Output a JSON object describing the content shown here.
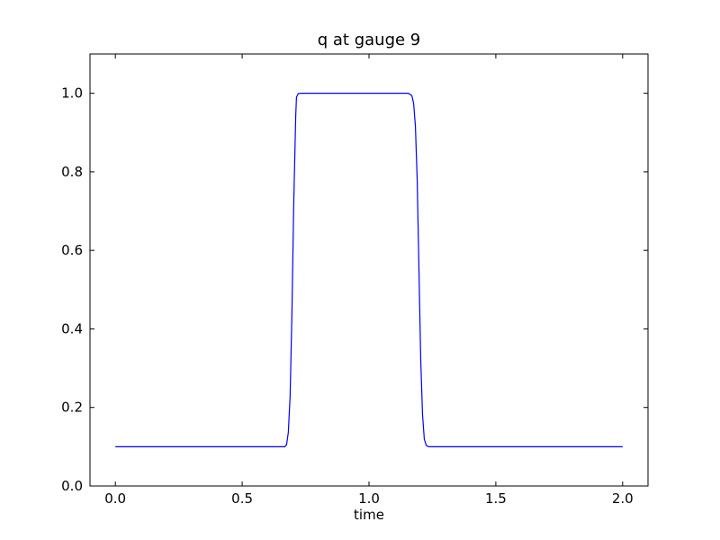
{
  "chart_data": {
    "type": "line",
    "title": "q at gauge 9",
    "xlabel": "time",
    "ylabel": "",
    "xlim": [
      -0.1,
      2.1
    ],
    "ylim": [
      0.0,
      1.1
    ],
    "grid": false,
    "xticks": [
      "0.0",
      "0.5",
      "1.0",
      "1.5",
      "2.0"
    ],
    "yticks": [
      "0.0",
      "0.2",
      "0.4",
      "0.6",
      "0.8",
      "1.0"
    ],
    "line_color": "#0000ff",
    "series": [
      {
        "x": [
          0.0,
          0.668,
          0.675,
          0.682,
          0.689,
          0.696,
          0.703,
          0.711,
          0.714,
          0.721,
          0.732,
          1.155,
          1.169,
          1.176,
          1.183,
          1.19,
          1.197,
          1.204,
          1.211,
          1.218,
          1.226,
          1.236,
          2.0
        ],
        "y": [
          0.1,
          0.1,
          0.105,
          0.137,
          0.229,
          0.435,
          0.71,
          0.939,
          0.99,
          0.999,
          1.0,
          1.0,
          0.994,
          0.974,
          0.916,
          0.779,
          0.55,
          0.321,
          0.183,
          0.119,
          0.103,
          0.1,
          0.1
        ]
      }
    ]
  }
}
